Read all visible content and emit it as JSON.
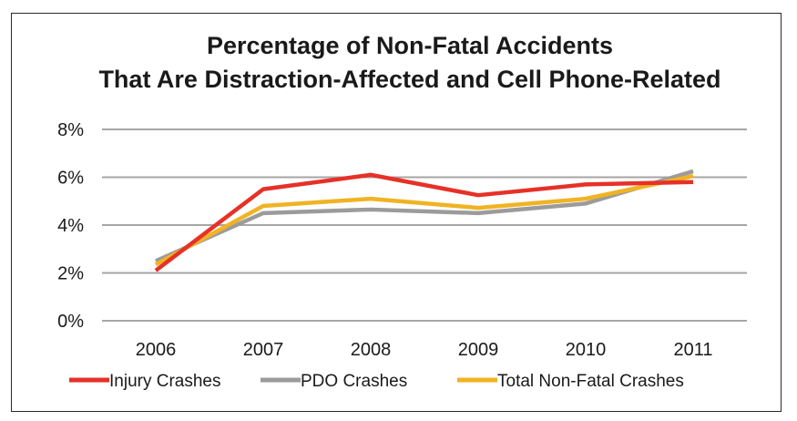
{
  "chart_data": {
    "type": "line",
    "title": [
      "Percentage of Non-Fatal Accidents",
      "That Are Distraction-Affected and Cell Phone-Related"
    ],
    "xlabel": "",
    "ylabel": "",
    "categories": [
      "2006",
      "2007",
      "2008",
      "2009",
      "2010",
      "2011"
    ],
    "ylim": [
      0,
      8
    ],
    "yticks": [
      0,
      2,
      4,
      6,
      8
    ],
    "ytick_labels": [
      "0%",
      "2%",
      "4%",
      "6%",
      "8%"
    ],
    "grid": true,
    "legend_position": "bottom",
    "series": [
      {
        "name": "Injury Crashes",
        "color": "#e63128",
        "values": [
          2.1,
          5.5,
          6.1,
          5.25,
          5.7,
          5.8
        ]
      },
      {
        "name": "PDO Crashes",
        "color": "#9b9b9b",
        "values": [
          2.5,
          4.5,
          4.65,
          4.5,
          4.9,
          6.25
        ]
      },
      {
        "name": "Total Non-Fatal Crashes",
        "color": "#f0b323",
        "values": [
          2.35,
          4.8,
          5.1,
          4.72,
          5.1,
          6.05
        ]
      }
    ]
  }
}
